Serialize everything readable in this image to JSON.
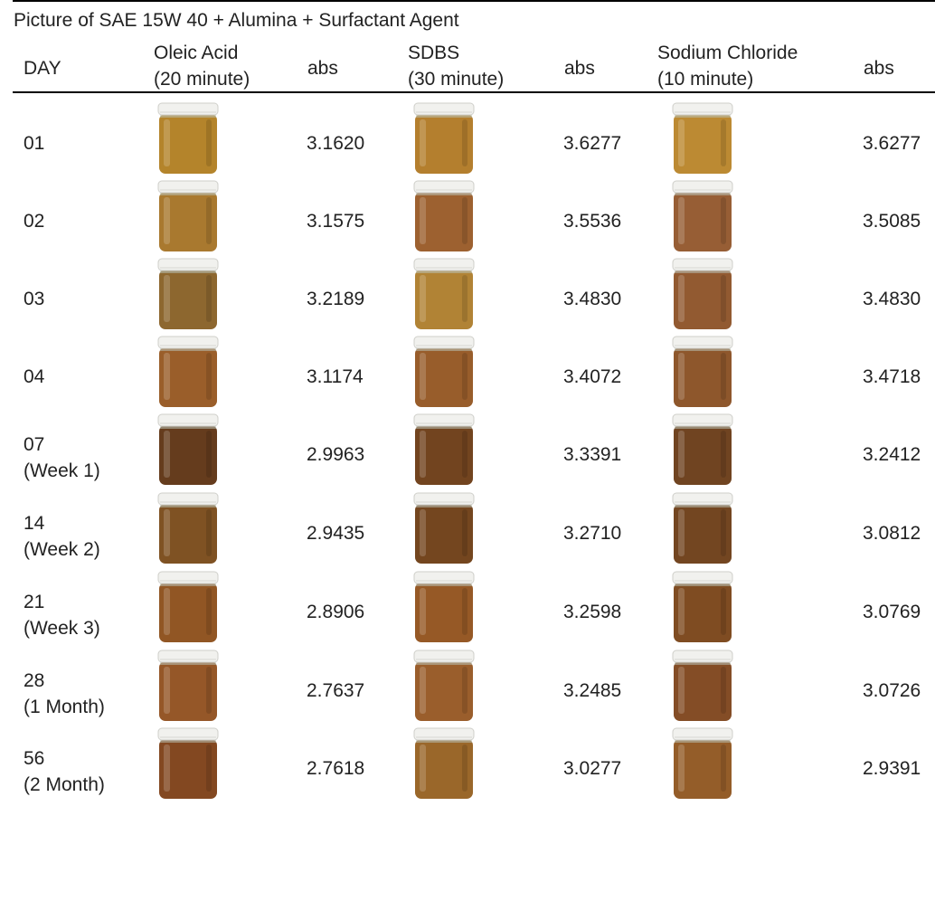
{
  "table": {
    "title": "Picture of SAE 15W 40 + Alumina + Surfactant Agent",
    "headers": {
      "day": "DAY",
      "oleic_line1": "Oleic Acid",
      "oleic_line2": "(20 minute)",
      "abs1": "abs",
      "sdbs_line1": "SDBS",
      "sdbs_line2": "(30 minute)",
      "abs2": "abs",
      "nacl_line1": "Sodium Chloride",
      "nacl_line2": "(10 minute)",
      "abs3": "abs"
    },
    "rows": [
      {
        "day": "01",
        "sub": "",
        "oleic_abs": "3.1620",
        "sdbs_abs": "3.6277",
        "nacl_abs": "3.6277",
        "oleic_color": "#c4902f",
        "sdbs_color": "#c48a32",
        "nacl_color": "#cc9638"
      },
      {
        "day": "02",
        "sub": "",
        "oleic_abs": "3.1575",
        "sdbs_abs": "3.5536",
        "nacl_abs": "3.5085",
        "oleic_color": "#b88433",
        "sdbs_color": "#ab6a35",
        "nacl_color": "#a4663a"
      },
      {
        "day": "03",
        "sub": "",
        "oleic_abs": "3.2189",
        "sdbs_abs": "3.4830",
        "nacl_abs": "3.4830",
        "oleic_color": "#9a7034",
        "sdbs_color": "#c08f3a",
        "nacl_color": "#9f6236"
      },
      {
        "day": "04",
        "sub": "",
        "oleic_abs": "3.1174",
        "sdbs_abs": "3.4072",
        "nacl_abs": "3.4718",
        "oleic_color": "#a8672e",
        "sdbs_color": "#a5652f",
        "nacl_color": "#9b5f30"
      },
      {
        "day": "07",
        "sub": "(Week 1)",
        "oleic_abs": "2.9963",
        "sdbs_abs": "3.3391",
        "nacl_abs": "3.2412",
        "oleic_color": "#6e4220",
        "sdbs_color": "#7c4a22",
        "nacl_color": "#7a4a24"
      },
      {
        "day": "14",
        "sub": "(Week 2)",
        "oleic_abs": "2.9435",
        "sdbs_abs": "3.2710",
        "nacl_abs": "3.0812",
        "oleic_color": "#8a5a26",
        "sdbs_color": "#7e4c22",
        "nacl_color": "#7d4d24"
      },
      {
        "day": "21",
        "sub": "(Week 3)",
        "oleic_abs": "2.8906",
        "sdbs_abs": "3.2598",
        "nacl_abs": "3.0769",
        "oleic_color": "#9e5e28",
        "sdbs_color": "#a3612a",
        "nacl_color": "#8a5325"
      },
      {
        "day": "28",
        "sub": "(1 Month)",
        "oleic_abs": "2.7637",
        "sdbs_abs": "3.2485",
        "nacl_abs": "3.0726",
        "oleic_color": "#a25f2c",
        "sdbs_color": "#a86630",
        "nacl_color": "#90542a"
      },
      {
        "day": "56",
        "sub": "(2 Month)",
        "oleic_abs": "2.7618",
        "sdbs_abs": "3.0277",
        "nacl_abs": "2.9391",
        "oleic_color": "#8f4f24",
        "sdbs_color": "#a8702e",
        "nacl_color": "#a1652d"
      }
    ]
  }
}
